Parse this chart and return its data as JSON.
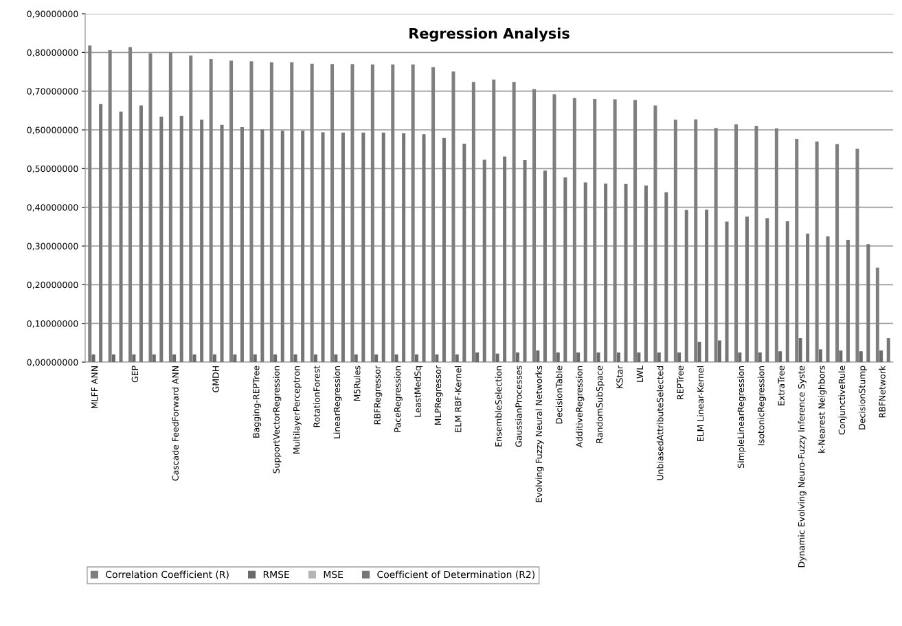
{
  "chart_data": {
    "type": "bar",
    "title": "Regression Analysis",
    "categories": [
      "MLFF ANN",
      null,
      "GEP",
      null,
      "Cascade FeedForward ANN",
      null,
      "GMDH",
      null,
      "Bagging-REPTree",
      "SupportVectorRegression",
      "MultilayerPerceptron",
      "RotationForest",
      "LinearRegression",
      "M5Rules",
      "RBFRegressor",
      "PaceRegression",
      "LeastMedSq",
      "MLPRegressor",
      "ELM RBF-Kernel",
      null,
      "EnsembleSelection",
      "GaussianProcesses",
      "Evolving Fuzzy Neural Networks",
      "DecisionTable",
      "AdditiveRegression",
      "RandomSubSpace",
      "KStar",
      "LWL",
      "UnbiasedAttributeSelected",
      "REPTree",
      "ELM Linear-Kernel",
      null,
      "SimpleLinearRegression",
      "IsotonicRegression",
      "ExtraTree",
      "Dynamic Evolving Neuro-Fuzzy Inference Syste",
      "k-Nearest Neighbors",
      "ConjunctiveRule",
      "DecisionStump",
      "RBFNetwork"
    ],
    "series": [
      {
        "name": "Correlation Coefficient (R)",
        "color": "#7f7f7f",
        "values": [
          0.818,
          0.806,
          0.814,
          0.798,
          0.8,
          0.792,
          0.783,
          0.779,
          0.777,
          0.775,
          0.775,
          0.771,
          0.77,
          0.77,
          0.769,
          0.769,
          0.769,
          0.762,
          0.751,
          0.724,
          0.73,
          0.724,
          0.705,
          0.692,
          0.682,
          0.68,
          0.679,
          0.677,
          0.663,
          0.626,
          0.627,
          0.605,
          0.614,
          0.61,
          0.604,
          0.577,
          0.57,
          0.563,
          0.551,
          0.244
        ]
      },
      {
        "name": "RMSE",
        "color": "#6a6a6a",
        "values": [
          0.02,
          0.02,
          0.02,
          0.02,
          0.02,
          0.02,
          0.02,
          0.02,
          0.02,
          0.02,
          0.02,
          0.02,
          0.02,
          0.02,
          0.02,
          0.02,
          0.02,
          0.02,
          0.02,
          0.025,
          0.022,
          0.025,
          0.03,
          0.025,
          0.025,
          0.025,
          0.025,
          0.025,
          0.025,
          0.025,
          0.052,
          0.056,
          0.025,
          0.025,
          0.028,
          0.062,
          0.033,
          0.03,
          0.028,
          0.03
        ]
      },
      {
        "name": "MSE",
        "color": "#b5b5b5",
        "values": [
          null,
          null,
          null,
          null,
          null,
          null,
          null,
          null,
          null,
          null,
          null,
          null,
          null,
          null,
          null,
          null,
          null,
          null,
          null,
          null,
          null,
          null,
          null,
          null,
          null,
          null,
          null,
          null,
          null,
          null,
          null,
          null,
          null,
          null,
          null,
          null,
          null,
          null,
          null,
          null
        ]
      },
      {
        "name": "Coefficient of Determination (R2)",
        "color": "#777777",
        "values": [
          0.667,
          0.647,
          0.663,
          0.634,
          0.636,
          0.626,
          0.613,
          0.607,
          0.601,
          0.598,
          0.598,
          0.594,
          0.593,
          0.593,
          0.593,
          0.591,
          0.589,
          0.579,
          0.564,
          0.523,
          0.531,
          0.522,
          0.495,
          0.477,
          0.464,
          0.461,
          0.46,
          0.456,
          0.439,
          0.393,
          0.394,
          0.363,
          0.376,
          0.372,
          0.364,
          0.332,
          0.325,
          0.316,
          0.305,
          0.062
        ]
      }
    ],
    "ylim": [
      0,
      0.9
    ],
    "yticks": [
      {
        "value": 0,
        "label": "0,00000000"
      },
      {
        "value": 0.1,
        "label": "0,10000000"
      },
      {
        "value": 0.2,
        "label": "0,20000000"
      },
      {
        "value": 0.3,
        "label": "0,30000000"
      },
      {
        "value": 0.4,
        "label": "0,40000000"
      },
      {
        "value": 0.5,
        "label": "0,50000000"
      },
      {
        "value": 0.6,
        "label": "0,60000000"
      },
      {
        "value": 0.7,
        "label": "0,70000000"
      },
      {
        "value": 0.8,
        "label": "0,80000000"
      },
      {
        "value": 0.9,
        "label": "0,90000000"
      }
    ],
    "grid": "y",
    "legend": "bottom left"
  }
}
